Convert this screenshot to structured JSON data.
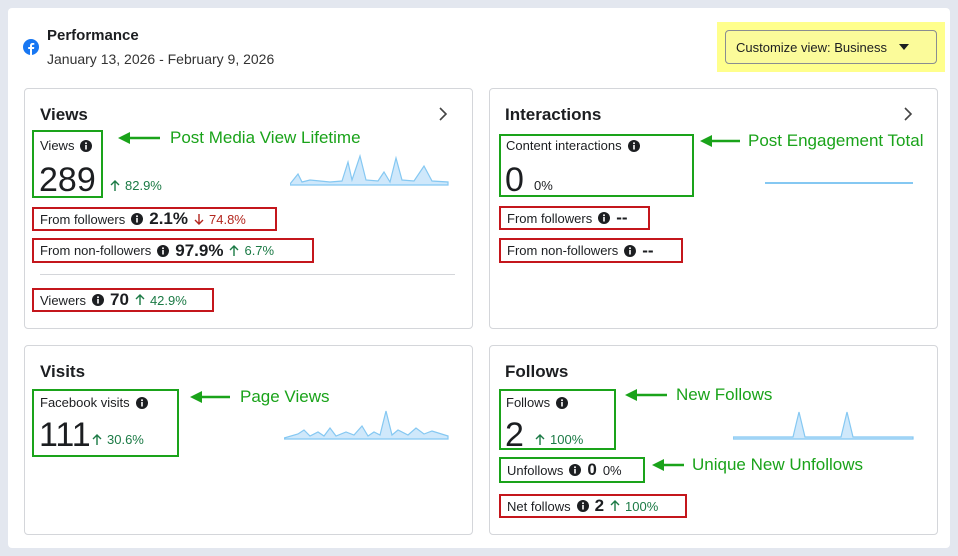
{
  "header": {
    "title": "Performance",
    "date_range": "January 13, 2026 - February 9, 2026",
    "button": "Customize view: Business"
  },
  "cards": [
    {
      "title": "Views",
      "metric": {
        "label": "Views",
        "value": "289",
        "change": "82.9%"
      },
      "rows": [
        {
          "label": "From followers",
          "value": "2.1%",
          "change": "74.8%"
        },
        {
          "label": "From non-followers",
          "value": "97.9%",
          "change": "6.7%"
        },
        {
          "label": "Viewers",
          "value": "70",
          "change": "42.9%"
        }
      ],
      "annotations": [
        "Post Media View Lifetime"
      ]
    },
    {
      "title": "Interactions",
      "metric": {
        "label": "Content interactions",
        "value": "0",
        "change": "0%"
      },
      "rows": [
        {
          "label": "From followers",
          "value": "--"
        },
        {
          "label": "From non-followers",
          "value": "--"
        }
      ],
      "annotations": [
        "Post Engagement Total"
      ]
    },
    {
      "title": "Visits",
      "metric": {
        "label": "Facebook visits",
        "value": "111",
        "change": "30.6%"
      },
      "annotations": [
        "Page Views"
      ]
    },
    {
      "title": "Follows",
      "metric": {
        "label": "Follows",
        "value": "2",
        "change": "100%"
      },
      "rows": [
        {
          "label": "Unfollows",
          "value": "0",
          "change": "0%"
        },
        {
          "label": "Net follows",
          "value": "2",
          "change": "100%"
        }
      ],
      "annotations": [
        "New Follows",
        "Unique New Unfollows"
      ]
    }
  ]
}
